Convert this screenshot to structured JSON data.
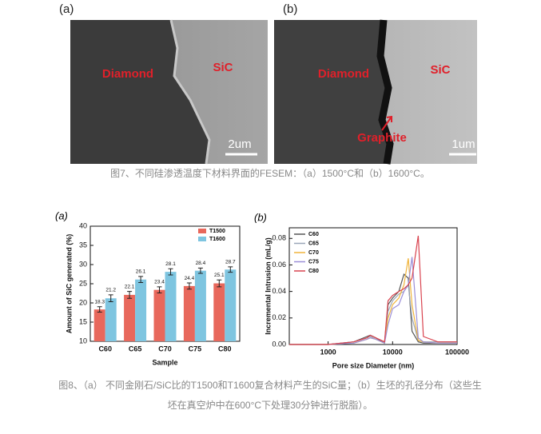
{
  "figure7": {
    "label_a": "(a)",
    "label_b": "(b)",
    "image_a": {
      "diamond": "Diamond",
      "sic": "SiC",
      "scale": "2um"
    },
    "image_b": {
      "diamond": "Diamond",
      "sic": "SiC",
      "graphite": "Graphite",
      "scale": "1um"
    },
    "caption": "图7、不同硅渗透温度下材料界面的FESEM：（a）1500°C和（b）1600°C。"
  },
  "figure8": {
    "caption_lines": [
      "图8、（a） 不同金刚石/SiC比的T1500和T1600复合材料产生的SiC量；（b）生坯的孔径分布（这些生",
      "坯在真空炉中在600°C下处理30分钟进行脱脂）。"
    ]
  },
  "chart_data": [
    {
      "type": "bar",
      "panel": "(a)",
      "xlabel": "Sample",
      "ylabel": "Amount of SiC generated (%)",
      "categories": [
        "C60",
        "C65",
        "C70",
        "C75",
        "C80"
      ],
      "series": [
        {
          "name": "T1500",
          "color": "#e8685c",
          "values": [
            18.3,
            22.1,
            23.4,
            24.4,
            25.1
          ],
          "errors": [
            0.7,
            0.9,
            0.8,
            0.8,
            0.9
          ]
        },
        {
          "name": "T1600",
          "color": "#7ec5e0",
          "values": [
            21.2,
            26.1,
            28.1,
            28.4,
            28.7
          ],
          "errors": [
            0.9,
            0.8,
            0.8,
            0.7,
            0.7
          ]
        }
      ],
      "ylim": [
        10,
        40
      ],
      "yticks": [
        10,
        15,
        20,
        25,
        30,
        35,
        40
      ],
      "legend": "upper right"
    },
    {
      "type": "line",
      "panel": "(b)",
      "xlabel": "Pore size Diameter (nm)",
      "ylabel": "Incremental Intrusion (mL/g)",
      "x": [
        250,
        1000,
        2500,
        4000,
        4500,
        5500,
        7500,
        8500,
        10000,
        12500,
        15000,
        17500,
        20000,
        25000,
        30000,
        50000,
        100000
      ],
      "xscale": "log",
      "xlim": [
        250,
        100000
      ],
      "xticks": [
        1000,
        10000,
        100000
      ],
      "ylim": [
        0,
        0.088
      ],
      "yticks": [
        {
          "value": 0,
          "label": "0.00"
        },
        {
          "value": 0.02,
          "label": "0.02"
        },
        {
          "value": 0.04,
          "label": "0.04"
        },
        {
          "value": 0.06,
          "label": "0.06"
        },
        {
          "value": 0.08,
          "label": "0.08"
        }
      ],
      "series": [
        {
          "name": "C60",
          "color": "#555555",
          "values": [
            0,
            0,
            0.002,
            0.006,
            0.007,
            0.005,
            0.001,
            0.03,
            0.035,
            0.04,
            0.053,
            0.05,
            0.01,
            0.002,
            0.001,
            0.001,
            0.001
          ]
        },
        {
          "name": "C65",
          "color": "#9aa6b8",
          "values": [
            0,
            0,
            0.002,
            0.005,
            0.006,
            0.004,
            0.001,
            0.025,
            0.033,
            0.038,
            0.04,
            0.045,
            0.02,
            0.003,
            0.002,
            0.002,
            0.002
          ]
        },
        {
          "name": "C70",
          "color": "#f0b43c",
          "values": [
            0,
            0,
            0.001,
            0.004,
            0.005,
            0.004,
            0.001,
            0.02,
            0.03,
            0.035,
            0.045,
            0.065,
            0.03,
            0.003,
            0.002,
            0.001,
            0.001
          ]
        },
        {
          "name": "C75",
          "color": "#9b8fd8",
          "values": [
            0,
            0,
            0.001,
            0.004,
            0.005,
            0.004,
            0.001,
            0.015,
            0.027,
            0.03,
            0.04,
            0.045,
            0.066,
            0.005,
            0.002,
            0.001,
            0.001
          ]
        },
        {
          "name": "C80",
          "color": "#d9434f",
          "values": [
            0,
            0,
            0.002,
            0.005,
            0.007,
            0.005,
            0.002,
            0.033,
            0.037,
            0.04,
            0.042,
            0.045,
            0.05,
            0.082,
            0.006,
            0.002,
            0.002
          ]
        }
      ],
      "legend": "upper left"
    }
  ]
}
